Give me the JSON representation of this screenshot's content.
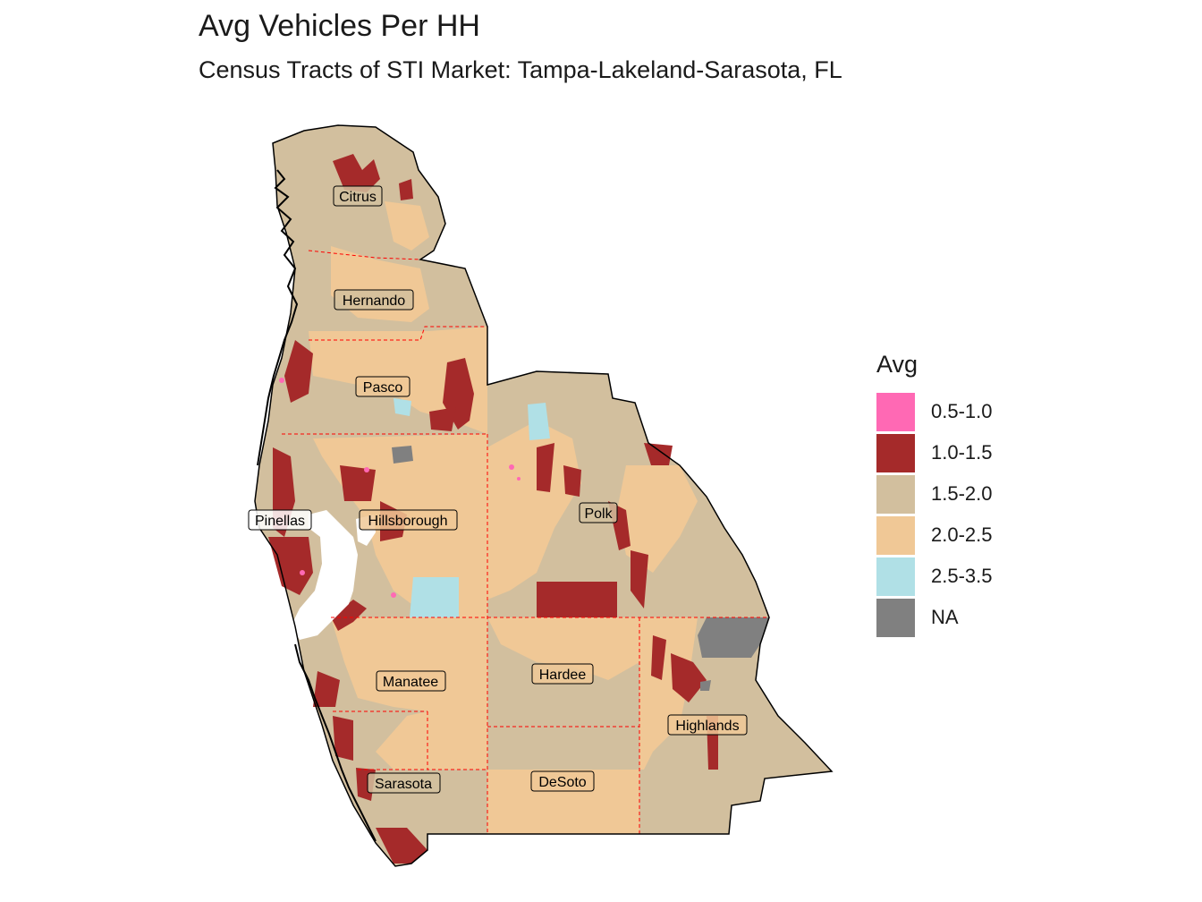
{
  "title": "Avg Vehicles Per HH",
  "subtitle": "Census Tracts of STI Market: Tampa-Lakeland-Sarasota, FL",
  "legend": {
    "title": "Avg",
    "items": [
      {
        "label": "0.5-1.0",
        "color": "#ff69b4"
      },
      {
        "label": "1.0-1.5",
        "color": "#a52a2a"
      },
      {
        "label": "1.5-2.0",
        "color": "#d2bf9e"
      },
      {
        "label": "2.0-2.5",
        "color": "#f0c896"
      },
      {
        "label": "2.5-3.5",
        "color": "#b0e0e6"
      },
      {
        "label": "NA",
        "color": "#808080"
      }
    ]
  },
  "counties": [
    {
      "name": "Citrus"
    },
    {
      "name": "Hernando"
    },
    {
      "name": "Pasco"
    },
    {
      "name": "Pinellas"
    },
    {
      "name": "Hillsborough"
    },
    {
      "name": "Polk"
    },
    {
      "name": "Manatee"
    },
    {
      "name": "Hardee"
    },
    {
      "name": "Highlands"
    },
    {
      "name": "Sarasota"
    },
    {
      "name": "DeSoto"
    }
  ],
  "colors": {
    "county_border": "#ff0000",
    "coast_outline": "#000000",
    "water": "#ffffff"
  }
}
